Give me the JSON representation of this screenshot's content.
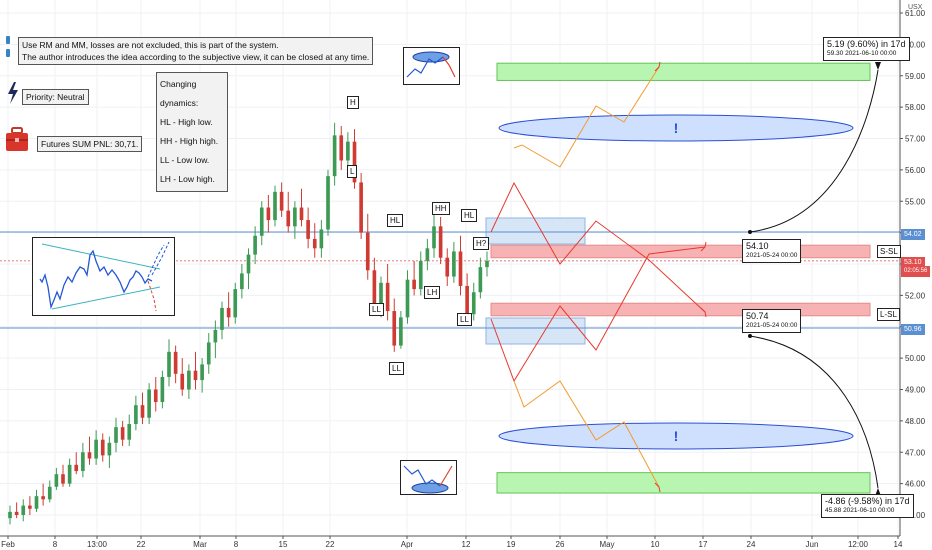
{
  "chart_data": {
    "type": "candlestick",
    "currency": "USX",
    "y_ticks": [
      "61.00",
      "60.00",
      "59.00",
      "58.00",
      "57.00",
      "56.00",
      "55.00",
      "54.00",
      "53.00",
      "52.00",
      "51.00",
      "50.00",
      "49.00",
      "48.00",
      "47.00",
      "46.00",
      "45.00"
    ],
    "ylim": [
      44.6,
      61.3
    ],
    "x_ticks": [
      "Feb",
      "8",
      "13:00",
      "22",
      "Mar",
      "8",
      "15",
      "22",
      "Apr",
      "12",
      "19",
      "26",
      "May",
      "10",
      "17",
      "24",
      "Jun",
      "12:00",
      "14"
    ],
    "price_badges": [
      {
        "label": "54.02",
        "value": 54.02,
        "color": "#5b8fd1"
      },
      {
        "label": "53.10",
        "value": 53.1,
        "color": "#e04e4e"
      },
      {
        "label": "02:05:56",
        "value": 52.86,
        "color": "#e04e4e"
      },
      {
        "label": "50.96",
        "value": 50.96,
        "color": "#5b8fd1"
      }
    ],
    "levels": {
      "upper": 54.02,
      "lower": 50.96,
      "current": 53.1
    },
    "pattern_labels": [
      {
        "text": "H",
        "price": 57.5
      },
      {
        "text": "L",
        "price": 55.7
      },
      {
        "text": "HL",
        "price": 54.6
      },
      {
        "text": "HH",
        "price": 54.9
      },
      {
        "text": "HL",
        "price": 54.7
      },
      {
        "text": "H?",
        "price": 53.7
      },
      {
        "text": "LL",
        "price": 51.3
      },
      {
        "text": "LH",
        "price": 51.85
      },
      {
        "text": "LL",
        "price": 50.1
      },
      {
        "text": "LL",
        "price": 51.1
      }
    ],
    "zones": [
      {
        "name": "target-up",
        "top": 59.4,
        "bottom": 58.85,
        "color": "#b8f5b0"
      },
      {
        "name": "target-down",
        "top": 46.35,
        "bottom": 45.7,
        "color": "#b8f5b0"
      },
      {
        "name": "s-sl",
        "top": 53.6,
        "bottom": 53.2,
        "color": "#f7b3b3"
      },
      {
        "name": "l-sl",
        "top": 51.75,
        "bottom": 51.35,
        "color": "#f7b3b3"
      }
    ],
    "side_labels": [
      "S-SL",
      "L-SL"
    ],
    "ellipse_marks": [
      "!",
      "!"
    ],
    "measure_up": {
      "line1": "5.19 (9.60%) in 17d",
      "line2": "59.30     2021-06-10  00:00"
    },
    "measure_down": {
      "line1": "-4.86 (-9.58%) in 17d",
      "line2": "45.88     2021-06-10  00:00"
    },
    "point_up": {
      "price": "54.10",
      "date": "2021-05-24 00:00"
    },
    "point_down": {
      "price": "50.74",
      "date": "2021-05-24 00:00"
    },
    "candles": [
      [
        44.9,
        45.3,
        44.7,
        45.1
      ],
      [
        45.1,
        45.4,
        44.9,
        45.0
      ],
      [
        45.0,
        45.5,
        44.8,
        45.3
      ],
      [
        45.3,
        45.6,
        45.0,
        45.2
      ],
      [
        45.2,
        45.8,
        45.1,
        45.6
      ],
      [
        45.6,
        46.0,
        45.3,
        45.5
      ],
      [
        45.5,
        46.1,
        45.4,
        45.9
      ],
      [
        45.9,
        46.5,
        45.8,
        46.3
      ],
      [
        46.3,
        46.6,
        45.9,
        46.0
      ],
      [
        46.0,
        46.8,
        45.9,
        46.6
      ],
      [
        46.6,
        47.0,
        46.3,
        46.4
      ],
      [
        46.4,
        47.3,
        46.2,
        47.0
      ],
      [
        47.0,
        47.5,
        46.6,
        46.8
      ],
      [
        46.8,
        47.7,
        46.6,
        47.4
      ],
      [
        47.4,
        47.6,
        46.7,
        46.9
      ],
      [
        46.9,
        47.5,
        46.5,
        47.3
      ],
      [
        47.3,
        48.1,
        47.0,
        47.8
      ],
      [
        47.8,
        48.0,
        47.2,
        47.4
      ],
      [
        47.4,
        48.2,
        47.2,
        47.9
      ],
      [
        47.9,
        48.8,
        47.7,
        48.5
      ],
      [
        48.5,
        48.9,
        47.9,
        48.1
      ],
      [
        48.1,
        49.2,
        47.9,
        49.0
      ],
      [
        49.0,
        49.4,
        48.3,
        48.6
      ],
      [
        48.6,
        49.6,
        48.4,
        49.4
      ],
      [
        49.4,
        50.6,
        49.1,
        50.2
      ],
      [
        50.2,
        50.4,
        49.2,
        49.5
      ],
      [
        49.5,
        50.0,
        48.8,
        49.0
      ],
      [
        49.0,
        49.8,
        48.7,
        49.6
      ],
      [
        49.6,
        50.2,
        49.0,
        49.3
      ],
      [
        49.3,
        50.0,
        48.9,
        49.8
      ],
      [
        49.8,
        50.8,
        49.5,
        50.5
      ],
      [
        50.5,
        51.2,
        50.0,
        50.9
      ],
      [
        50.9,
        51.8,
        50.6,
        51.6
      ],
      [
        51.6,
        52.1,
        51.0,
        51.3
      ],
      [
        51.3,
        52.4,
        51.1,
        52.2
      ],
      [
        52.2,
        53.0,
        51.9,
        52.7
      ],
      [
        52.7,
        53.5,
        52.2,
        53.3
      ],
      [
        53.3,
        54.2,
        53.0,
        53.9
      ],
      [
        53.9,
        55.0,
        53.6,
        54.8
      ],
      [
        54.8,
        55.2,
        54.0,
        54.4
      ],
      [
        54.4,
        55.5,
        54.2,
        55.3
      ],
      [
        55.3,
        55.6,
        54.5,
        54.7
      ],
      [
        54.7,
        55.3,
        54.0,
        54.2
      ],
      [
        54.2,
        55.0,
        53.8,
        54.8
      ],
      [
        54.8,
        55.4,
        54.2,
        54.4
      ],
      [
        54.4,
        54.8,
        53.5,
        53.8
      ],
      [
        53.8,
        54.3,
        53.2,
        53.5
      ],
      [
        53.5,
        54.4,
        53.2,
        54.1
      ],
      [
        54.1,
        56.0,
        53.9,
        55.8
      ],
      [
        55.8,
        57.5,
        55.5,
        57.1
      ],
      [
        57.1,
        57.4,
        56.0,
        56.3
      ],
      [
        56.3,
        57.2,
        55.8,
        56.9
      ],
      [
        56.9,
        57.3,
        55.4,
        55.6
      ],
      [
        55.6,
        55.9,
        53.8,
        54.0
      ],
      [
        54.0,
        54.6,
        52.5,
        52.8
      ],
      [
        52.8,
        53.2,
        51.4,
        51.7
      ],
      [
        51.7,
        52.6,
        51.3,
        52.4
      ],
      [
        52.4,
        53.0,
        51.2,
        51.5
      ],
      [
        51.5,
        51.9,
        50.2,
        50.4
      ],
      [
        50.4,
        51.5,
        50.3,
        51.3
      ],
      [
        51.3,
        52.8,
        51.1,
        52.5
      ],
      [
        52.5,
        53.1,
        52.0,
        52.2
      ],
      [
        52.2,
        53.4,
        52.0,
        53.1
      ],
      [
        53.1,
        53.8,
        52.8,
        53.5
      ],
      [
        53.5,
        54.6,
        53.2,
        54.2
      ],
      [
        54.2,
        54.5,
        53.0,
        53.2
      ],
      [
        53.2,
        53.5,
        52.3,
        52.6
      ],
      [
        52.6,
        53.7,
        52.4,
        53.4
      ],
      [
        53.4,
        53.9,
        52.0,
        52.3
      ],
      [
        52.3,
        52.7,
        51.1,
        51.4
      ],
      [
        51.4,
        52.4,
        51.2,
        52.1
      ],
      [
        52.1,
        53.2,
        51.9,
        52.9
      ],
      [
        52.9,
        53.4,
        52.6,
        53.1
      ]
    ]
  },
  "notes": {
    "header_line1": "Use RM and MM, losses are not excluded, this is part of the system.",
    "header_line2": "The author introduces the idea according to the subjective view, it can be closed at any time.",
    "priority": "Priority: Neutral",
    "futures_pnl": "Futures SUM PNL: 30,71.",
    "dynamics_title": "Changing dynamics:",
    "dynamics_items": [
      "HL - High low.",
      "HH - High high.",
      "LL - Low low.",
      "LH - Low high."
    ]
  }
}
